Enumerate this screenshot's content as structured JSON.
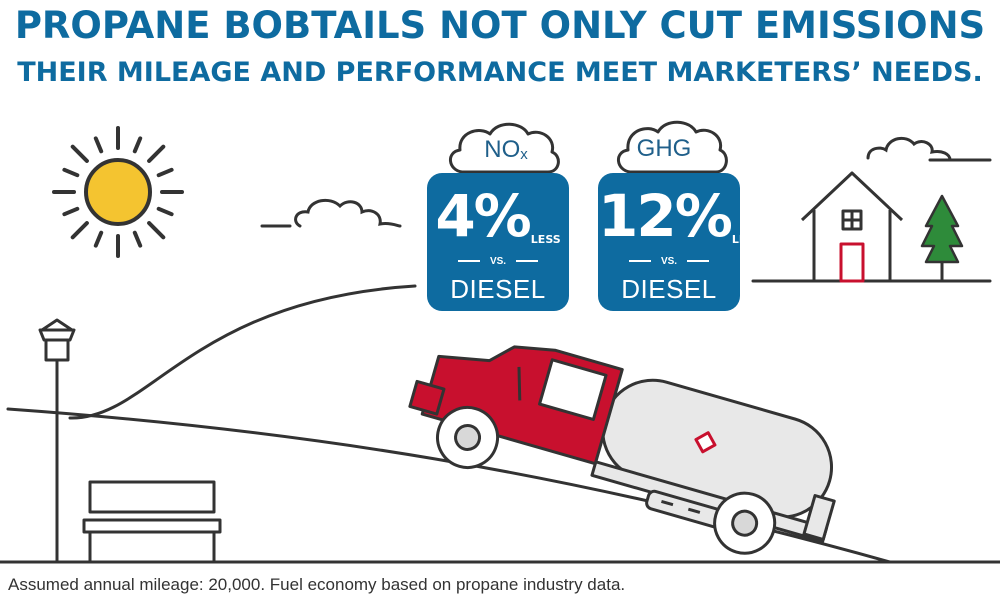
{
  "headline": {
    "line1": "PROPANE BOBTAILS NOT ONLY CUT EMISSIONS",
    "line2": "THEIR MILEAGE AND PERFORMANCE MEET MARKETERS’ NEEDS."
  },
  "stats": [
    {
      "pollutant": "NO",
      "pollutant_subscript": "x",
      "value": "4%",
      "qualifier": "LESS",
      "vs": "VS.",
      "baseline": "DIESEL"
    },
    {
      "pollutant": "GHG",
      "value": "12%",
      "qualifier": "LESS",
      "vs": "VS.",
      "baseline": "DIESEL"
    }
  ],
  "footnote": "Assumed annual mileage: 20,000. Fuel economy based on propane industry data.",
  "colors": {
    "brand_blue": "#0e6ba0",
    "truck_red": "#c8102e",
    "sun_yellow": "#f4c430",
    "tree_green": "#2e8b3a",
    "line": "#333333"
  },
  "icons": [
    "sun-icon",
    "cloud-icon",
    "house-icon",
    "tree-icon",
    "street-lamp-icon",
    "bench-icon",
    "propane-truck-icon",
    "hazard-diamond-icon"
  ]
}
